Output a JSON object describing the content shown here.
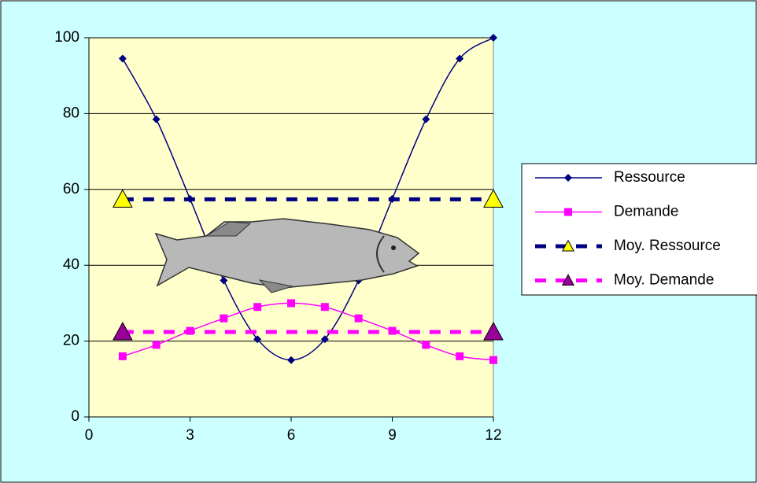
{
  "chart_data": {
    "type": "line",
    "x": [
      1,
      2,
      3,
      4,
      5,
      6,
      7,
      8,
      9,
      10,
      11,
      12
    ],
    "series": [
      {
        "name": "Ressource",
        "color": "#000080",
        "marker": "diamond",
        "marker_color": "#000080",
        "line_style": "solid",
        "values": [
          94.5,
          78.5,
          57.5,
          36,
          20.5,
          15,
          20.5,
          36,
          57.5,
          78.5,
          94.5,
          100
        ]
      },
      {
        "name": "Demande",
        "color": "#FF00FF",
        "marker": "square",
        "marker_color": "#FF00FF",
        "line_style": "solid",
        "values": [
          16,
          19,
          22.7,
          26,
          29,
          30,
          29,
          26,
          22.7,
          19,
          16,
          15
        ]
      },
      {
        "name": "Moy. Ressource",
        "color": "#000080",
        "marker": "triangle",
        "marker_color": "#FFFF00",
        "line_style": "dashed",
        "x": [
          1,
          12
        ],
        "values": [
          57.4,
          57.4
        ]
      },
      {
        "name": "Moy. Demande",
        "color": "#FF00FF",
        "marker": "triangle",
        "marker_color": "#990099",
        "line_style": "dashed",
        "x": [
          1,
          12
        ],
        "values": [
          22.4,
          22.4
        ]
      }
    ],
    "xlim": [
      0,
      12
    ],
    "xticks": [
      0,
      3,
      6,
      9,
      12
    ],
    "ylim": [
      0,
      100
    ],
    "yticks": [
      0,
      20,
      40,
      60,
      80,
      100
    ],
    "grid": true,
    "legend": "right"
  }
}
